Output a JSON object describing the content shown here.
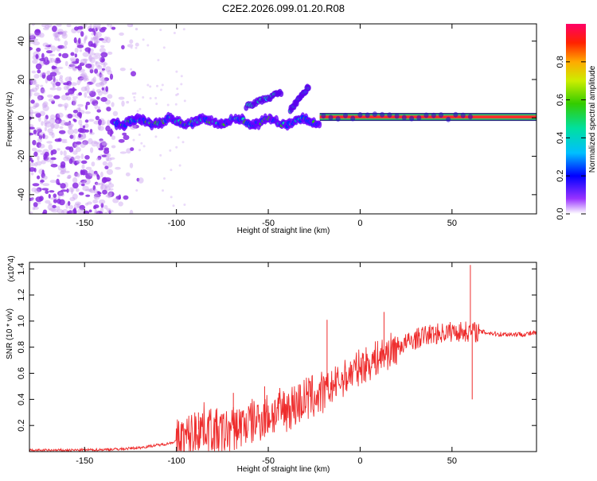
{
  "title": "C2E2.2026.099.01.20.R08",
  "chart_data": [
    {
      "type": "heatmap",
      "name": "spectrogram",
      "xlabel": "Height of straight line (km)",
      "ylabel": "Frequency (Hz)",
      "xlim": [
        -180,
        96
      ],
      "ylim": [
        -50,
        49
      ],
      "xticks": [
        -150,
        -100,
        -50,
        0,
        50
      ],
      "yticks": [
        -40,
        -20,
        0,
        20,
        40
      ],
      "colorbar": {
        "label": "Normalized spectral amplitude",
        "range": [
          0.0,
          1.0
        ],
        "ticks": [
          0.0,
          0.2,
          0.4,
          0.6,
          0.8
        ]
      },
      "features": [
        {
          "name": "strong carrier line",
          "x_range": [
            -22,
            96
          ],
          "frequency": 0.5,
          "amplitude": 0.9
        },
        {
          "name": "main track",
          "x_range": [
            -135,
            -22
          ],
          "frequency": -2,
          "amplitude": 0.35
        },
        {
          "name": "upper branch",
          "x_range": [
            -62,
            -43
          ],
          "frequency_range": [
            6,
            13
          ],
          "amplitude": 0.3
        },
        {
          "name": "upper branch 2",
          "x_range": [
            -38,
            -28
          ],
          "frequency_range": [
            4,
            16
          ],
          "amplitude": 0.25
        },
        {
          "name": "noise region",
          "x_range": [
            -180,
            -118
          ],
          "frequency": "all",
          "amplitude": 0.12
        }
      ]
    },
    {
      "type": "line",
      "name": "snr",
      "xlabel": "Height of straight line (km)",
      "ylabel": "SNR (10 * v/v)",
      "y_multiplier": "(x10^4)",
      "xlim": [
        -180,
        96
      ],
      "ylim": [
        0,
        1.45
      ],
      "xticks": [
        -150,
        -100,
        -50,
        0,
        50
      ],
      "yticks": [
        0.2,
        0.4,
        0.6,
        0.8,
        1.0,
        1.2,
        1.4
      ],
      "series": [
        {
          "name": "SNR",
          "color": "#ee2c2c",
          "x": [
            -180,
            -160,
            -140,
            -130,
            -120,
            -110,
            -105,
            -100,
            -95,
            -90,
            -85,
            -80,
            -75,
            -70,
            -65,
            -60,
            -55,
            -50,
            -45,
            -40,
            -35,
            -30,
            -25,
            -20,
            -15,
            -10,
            -5,
            0,
            5,
            10,
            15,
            20,
            25,
            30,
            35,
            40,
            45,
            50,
            55,
            60,
            65,
            70,
            75,
            80,
            85,
            90,
            96
          ],
          "values": [
            0.01,
            0.01,
            0.015,
            0.02,
            0.03,
            0.05,
            0.06,
            0.08,
            0.1,
            0.15,
            0.2,
            0.16,
            0.14,
            0.17,
            0.2,
            0.22,
            0.25,
            0.28,
            0.3,
            0.33,
            0.36,
            0.4,
            0.42,
            0.45,
            0.5,
            0.55,
            0.6,
            0.65,
            0.68,
            0.72,
            0.76,
            0.8,
            0.83,
            0.86,
            0.89,
            0.9,
            0.91,
            0.92,
            0.92,
            0.92,
            0.92,
            0.91,
            0.9,
            0.9,
            0.9,
            0.9,
            0.91
          ]
        }
      ],
      "spikes": [
        {
          "x": -88,
          "value": 0.3
        },
        {
          "x": -69,
          "value": 0.45
        },
        {
          "x": -52,
          "value": 0.5
        },
        {
          "x": -18,
          "value": 1.01
        },
        {
          "x": 13,
          "value": 1.07
        },
        {
          "x": 60,
          "value": 1.43
        },
        {
          "x": 61,
          "value": 0.4
        }
      ]
    }
  ]
}
